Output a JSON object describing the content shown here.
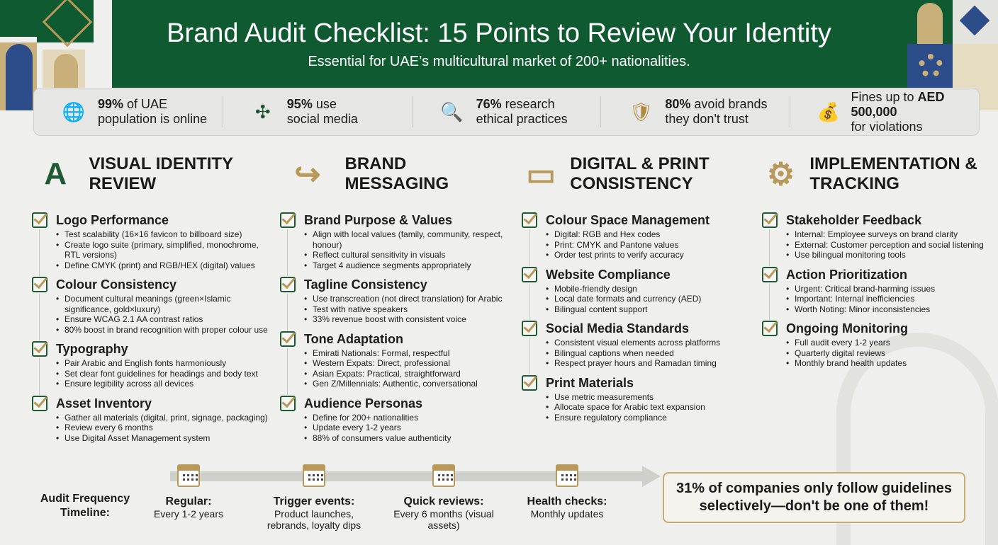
{
  "header": {
    "title": "Brand Audit Checklist: 15 Points to Review Your Identity",
    "subtitle": "Essential for UAE’s multicultural market of 200+ nationalities."
  },
  "colors": {
    "green": "#0f5a30",
    "gold": "#b8995a",
    "background": "#efefed"
  },
  "stats": [
    {
      "icon": "globe-wifi-icon",
      "bold": "99%",
      "text1": " of UAE",
      "text2": "population is online"
    },
    {
      "icon": "social-media-icon",
      "bold": "95%",
      "text1": " use",
      "text2": "social media"
    },
    {
      "icon": "magnifier-leaf-icon",
      "bold": "76%",
      "text1": " research",
      "text2": "ethical practices"
    },
    {
      "icon": "shield-cross-icon",
      "bold": "80%",
      "text1": " avoid brands",
      "text2": "they don't trust"
    },
    {
      "icon": "money-gavel-icon",
      "pre": "Fines up to ",
      "bold": "AED 500,000",
      "text2": "for violations"
    }
  ],
  "sections": [
    {
      "title": "VISUAL IDENTITY REVIEW",
      "icon": "palette-letter-icon",
      "items": [
        {
          "title": "Logo Performance",
          "bullets": [
            "Test scalability (16×16 favicon to billboard size)",
            "Create logo suite (primary, simplified, monochrome, RTL versions)",
            "Define CMYK (print) and RGB/HEX (digital) values"
          ]
        },
        {
          "title": "Colour Consistency",
          "bullets": [
            "Document cultural meanings (green×Islamic significance, gold×luxury)",
            "Ensure WCAG 2.1 AA contrast ratios",
            "80% boost in brand recognition with proper colour use"
          ]
        },
        {
          "title": "Typography",
          "bullets": [
            "Pair Arabic and English fonts harmoniously",
            "Set clear font guidelines for headings and body text",
            "Ensure legibility across all devices"
          ]
        },
        {
          "title": "Asset Inventory",
          "bullets": [
            "Gather all materials (digital, print, signage, packaging)",
            "Review every 6 months",
            "Use Digital Asset Management system"
          ]
        }
      ]
    },
    {
      "title": "BRAND MESSAGING",
      "icon": "speech-bubbles-icon",
      "items": [
        {
          "title": "Brand Purpose & Values",
          "bullets": [
            "Align with local values (family, community, respect, honour)",
            "Reflect cultural sensitivity in visuals",
            "Target 4 audience segments appropriately"
          ]
        },
        {
          "title": "Tagline Consistency",
          "bullets": [
            "Use transcreation (not direct translation) for Arabic",
            "Test with native speakers",
            "33% revenue boost with consistent voice"
          ]
        },
        {
          "title": "Tone Adaptation",
          "bullets": [
            "Emirati Nationals: Formal, respectful",
            "Western Expats: Direct, professional",
            "Asian Expats: Practical, straightforward",
            "Gen Z/Millennials: Authentic, conversational"
          ]
        },
        {
          "title": "Audience Personas",
          "bullets": [
            "Define for 200+ nationalities",
            "Update every 1-2 years",
            "88% of consumers value authenticity"
          ]
        }
      ]
    },
    {
      "title": "DIGITAL & PRINT CONSISTENCY",
      "icon": "tablet-printer-icon",
      "items": [
        {
          "title": "Colour Space Management",
          "bullets": [
            "Digital: RGB and Hex codes",
            "Print: CMYK and Pantone values",
            "Order test prints to verify accuracy"
          ]
        },
        {
          "title": "Website Compliance",
          "bullets": [
            "Mobile-friendly design",
            "Local date formats and currency (AED)",
            "Bilingual content support"
          ]
        },
        {
          "title": "Social Media Standards",
          "bullets": [
            "Consistent visual elements across platforms",
            "Bilingual captions when needed",
            "Respect prayer hours and Ramadan timing"
          ]
        },
        {
          "title": "Print Materials",
          "bullets": [
            "Use metric measurements",
            "Allocate space for Arabic text expansion",
            "Ensure regulatory compliance"
          ]
        }
      ]
    },
    {
      "title": "IMPLEMENTATION & TRACKING",
      "icon": "gear-growth-icon",
      "items": [
        {
          "title": "Stakeholder Feedback",
          "bullets": [
            "Internal: Employee surveys on brand clarity",
            "External: Customer perception and social listening",
            "Use bilingual monitoring tools"
          ]
        },
        {
          "title": "Action Prioritization",
          "bullets": [
            "Urgent: Critical brand-harming issues",
            "Important: Internal inefficiencies",
            "Worth Noting: Minor inconsistencies"
          ]
        },
        {
          "title": "Ongoing Monitoring",
          "bullets": [
            "Full audit every 1-2 years",
            "Quarterly digital reviews",
            "Monthly brand health updates"
          ]
        }
      ]
    }
  ],
  "timeline": {
    "label": "Audit Frequency Timeline:",
    "items": [
      {
        "title": "Regular:",
        "desc": "Every 1-2 years"
      },
      {
        "title": "Trigger events:",
        "desc": "Product launches, rebrands, loyalty dips"
      },
      {
        "title": "Quick reviews:",
        "desc": "Every 6 months (visual assets)"
      },
      {
        "title": "Health checks:",
        "desc": "Monthly updates"
      }
    ]
  },
  "callout": "31% of companies only follow guidelines selectively—don't be one of them!"
}
